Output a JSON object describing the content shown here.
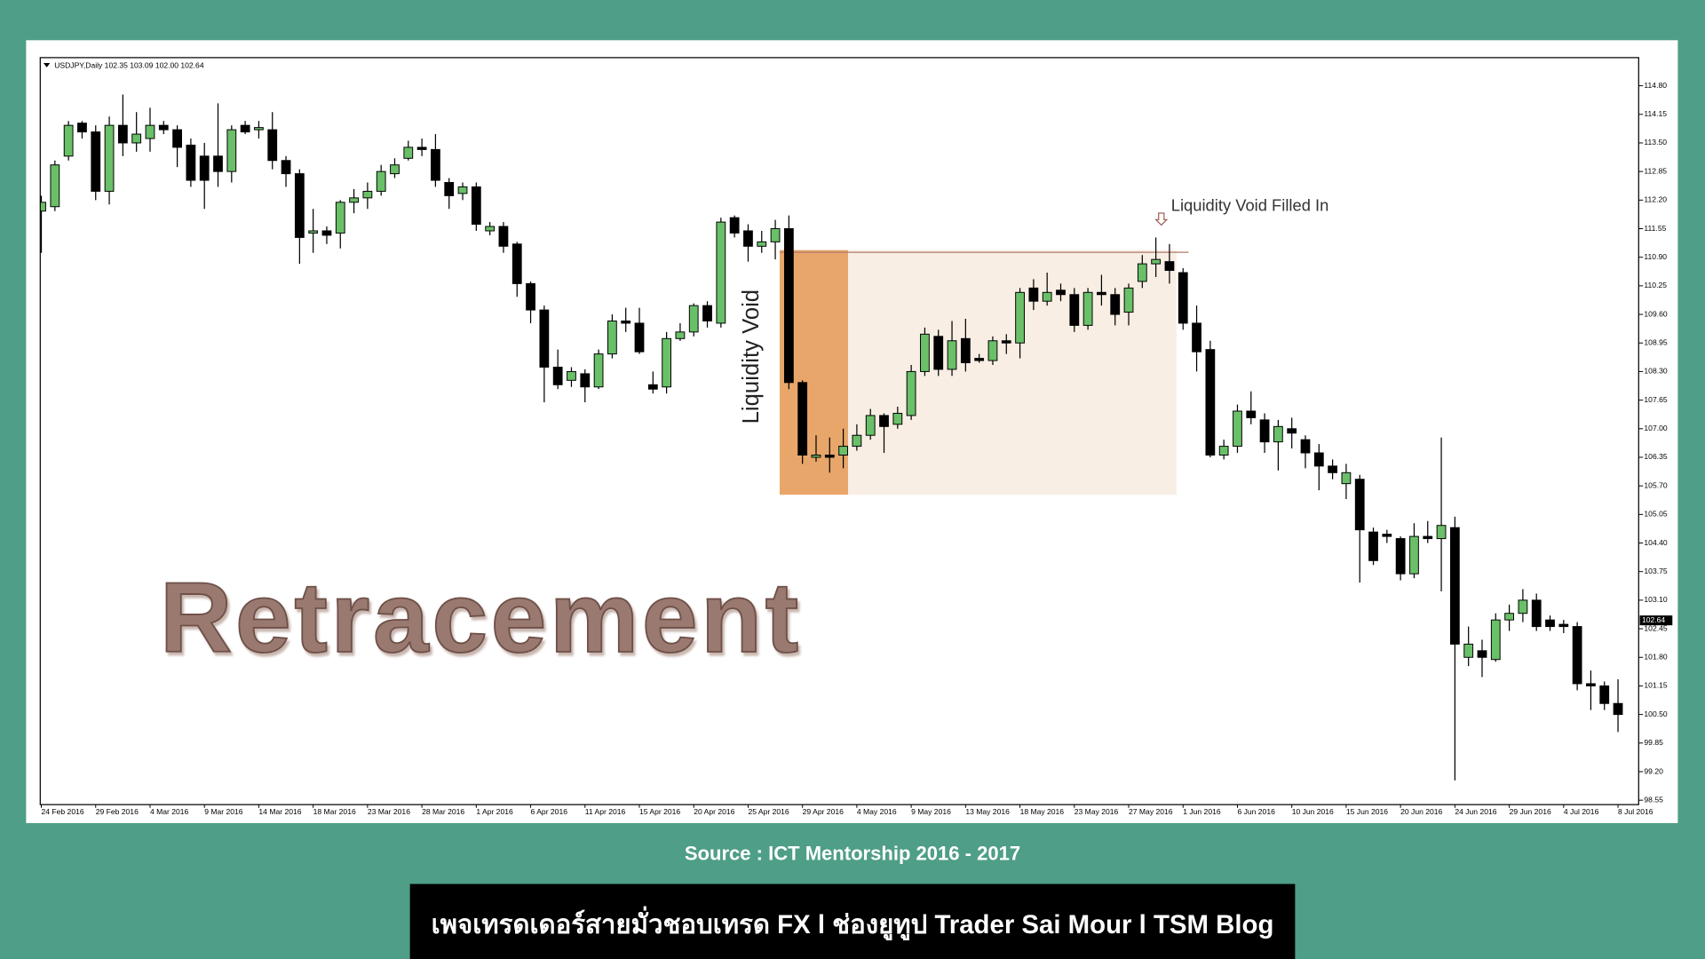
{
  "chart_data": {
    "type": "candlestick",
    "title": "USDJPY,Daily 102.35 103.09 102.00 102.64",
    "annotations": [
      "Liquidity Void",
      "Liquidity Void Filled In",
      "Retracement"
    ],
    "current_price": 102.64,
    "up_color": "#6abf69",
    "down_color": "#000000",
    "categories": [
      "24 Feb 2016",
      null,
      null,
      null,
      "29 Feb 2016",
      null,
      null,
      null,
      "4 Mar 2016",
      null,
      null,
      null,
      "9 Mar 2016",
      null,
      null,
      null,
      "14 Mar 2016",
      null,
      null,
      null,
      "18 Mar 2016",
      null,
      null,
      null,
      "23 Mar 2016",
      null,
      null,
      null,
      "28 Mar 2016",
      null,
      null,
      null,
      "1 Apr 2016",
      null,
      null,
      null,
      "6 Apr 2016",
      null,
      null,
      null,
      "11 Apr 2016",
      null,
      null,
      null,
      "15 Apr 2016",
      null,
      null,
      null,
      "20 Apr 2016",
      null,
      null,
      null,
      "25 Apr 2016",
      null,
      null,
      null,
      "29 Apr 2016",
      null,
      null,
      null,
      "4 May 2016",
      null,
      null,
      null,
      "9 May 2016",
      null,
      null,
      null,
      "13 May 2016",
      null,
      null,
      null,
      "18 May 2016",
      null,
      null,
      null,
      "23 May 2016",
      null,
      null,
      null,
      "27 May 2016",
      null,
      null,
      null,
      "1 Jun 2016",
      null,
      null,
      null,
      "6 Jun 2016",
      null,
      null,
      null,
      "10 Jun 2016",
      null,
      null,
      null,
      "15 Jun 2016",
      null,
      null,
      null,
      "20 Jun 2016",
      null,
      null,
      null,
      "24 Jun 2016",
      null,
      null,
      null,
      "29 Jun 2016",
      null,
      null,
      null,
      "4 Jul 2016",
      null,
      null,
      null,
      "8 Jul 2016"
    ],
    "open": [
      111.95,
      112.05,
      113.2,
      113.95,
      113.75,
      112.4,
      113.9,
      113.5,
      113.6,
      113.9,
      113.8,
      113.45,
      113.2,
      113.2,
      112.85,
      113.9,
      113.8,
      113.8,
      113.1,
      112.8,
      111.45,
      111.5,
      111.45,
      112.15,
      112.25,
      112.4,
      112.8,
      113.15,
      113.4,
      113.35,
      112.6,
      112.35,
      112.5,
      111.5,
      111.6,
      111.2,
      110.3,
      109.7,
      108.4,
      108.1,
      108.25,
      107.95,
      108.7,
      109.45,
      109.4,
      108.0,
      107.95,
      109.05,
      109.2,
      109.8,
      109.4,
      111.8,
      111.5,
      111.15,
      111.25,
      111.55,
      108.05,
      106.35,
      106.4,
      106.4,
      106.6,
      106.85,
      107.3,
      107.1,
      107.3,
      108.3,
      109.1,
      108.35,
      109.05,
      108.6,
      108.55,
      109.0,
      108.95,
      110.2,
      109.9,
      110.15,
      110.05,
      109.35,
      110.1,
      110.05,
      109.65,
      110.35,
      110.75,
      110.8,
      110.55,
      109.4,
      108.8,
      106.4,
      106.6,
      107.4,
      107.2,
      106.7,
      107.0,
      106.75,
      106.45,
      106.15,
      105.75,
      105.85,
      104.65,
      104.6,
      104.5,
      103.7,
      104.55,
      104.5,
      104.75,
      101.8,
      101.95,
      101.75,
      102.65,
      102.8,
      103.1,
      102.65,
      102.55,
      102.5,
      101.2,
      101.15,
      100.75
    ],
    "high": [
      112.3,
      113.1,
      114.0,
      114.0,
      113.9,
      114.1,
      114.6,
      114.2,
      114.3,
      114.0,
      113.9,
      113.6,
      113.5,
      114.4,
      113.9,
      114.0,
      114.0,
      114.2,
      113.2,
      112.9,
      112.0,
      111.6,
      112.2,
      112.45,
      112.6,
      113.0,
      113.15,
      113.55,
      113.6,
      113.7,
      112.7,
      112.6,
      112.6,
      111.7,
      111.7,
      111.25,
      110.35,
      109.8,
      108.8,
      108.4,
      108.35,
      108.8,
      109.6,
      109.75,
      109.75,
      108.3,
      109.2,
      109.4,
      109.85,
      109.9,
      111.8,
      111.85,
      111.65,
      111.5,
      111.75,
      111.85,
      108.1,
      106.85,
      106.8,
      107.0,
      107.1,
      107.45,
      107.35,
      107.5,
      108.45,
      109.3,
      109.25,
      109.45,
      109.5,
      108.7,
      109.1,
      109.15,
      110.2,
      110.4,
      110.55,
      110.3,
      110.2,
      110.2,
      110.5,
      110.2,
      110.3,
      110.95,
      111.35,
      111.2,
      110.65,
      109.8,
      109.0,
      106.75,
      107.55,
      107.85,
      107.35,
      107.2,
      107.25,
      106.85,
      106.65,
      106.3,
      106.2,
      105.95,
      104.75,
      104.7,
      104.55,
      104.85,
      104.9,
      106.8,
      105.0,
      102.5,
      102.2,
      102.8,
      103.0,
      103.35,
      103.25,
      102.75,
      102.65,
      102.6,
      101.5,
      101.25,
      101.3
    ],
    "low": [
      111.0,
      111.95,
      113.1,
      113.6,
      112.2,
      112.1,
      113.2,
      113.3,
      113.3,
      113.7,
      112.95,
      112.5,
      112.0,
      112.5,
      112.6,
      113.7,
      113.6,
      112.9,
      112.5,
      110.75,
      111.0,
      111.2,
      111.1,
      111.9,
      112.0,
      112.3,
      112.7,
      113.1,
      113.2,
      112.5,
      112.0,
      112.2,
      111.5,
      111.4,
      111.0,
      110.0,
      109.4,
      107.6,
      107.9,
      107.95,
      107.6,
      107.9,
      108.6,
      109.2,
      108.7,
      107.8,
      107.8,
      109.0,
      109.1,
      109.3,
      109.3,
      111.35,
      110.8,
      111.0,
      110.85,
      107.9,
      106.2,
      106.25,
      106.0,
      106.1,
      106.5,
      106.75,
      106.45,
      107.0,
      107.2,
      108.2,
      108.2,
      108.2,
      108.3,
      108.5,
      108.45,
      108.7,
      108.6,
      109.7,
      109.8,
      109.9,
      109.2,
      109.25,
      109.8,
      109.35,
      109.35,
      110.2,
      110.45,
      110.3,
      109.25,
      108.3,
      106.35,
      106.3,
      106.45,
      107.1,
      106.45,
      106.05,
      106.55,
      106.1,
      105.6,
      105.85,
      105.4,
      103.5,
      103.9,
      104.4,
      103.55,
      103.6,
      104.4,
      103.3,
      99.0,
      101.6,
      101.35,
      101.7,
      102.4,
      102.6,
      102.4,
      102.4,
      102.35,
      101.05,
      100.6,
      100.6,
      100.1
    ],
    "close": [
      112.15,
      113.0,
      113.9,
      113.75,
      112.4,
      113.9,
      113.5,
      113.7,
      113.9,
      113.8,
      113.4,
      112.65,
      112.65,
      112.85,
      113.8,
      113.75,
      113.85,
      113.1,
      112.8,
      111.35,
      111.5,
      111.4,
      112.15,
      112.25,
      112.4,
      112.85,
      113.0,
      113.4,
      113.35,
      112.65,
      112.3,
      112.5,
      111.65,
      111.6,
      111.15,
      110.3,
      109.7,
      108.4,
      108.0,
      108.3,
      107.95,
      108.7,
      109.45,
      109.4,
      108.75,
      107.9,
      109.05,
      109.2,
      109.8,
      109.45,
      111.7,
      111.45,
      111.15,
      111.25,
      111.55,
      108.05,
      106.4,
      106.4,
      106.35,
      106.6,
      106.85,
      107.3,
      107.05,
      107.35,
      108.3,
      109.15,
      108.35,
      109.0,
      108.5,
      108.55,
      109.0,
      108.95,
      110.1,
      109.9,
      110.1,
      110.05,
      109.35,
      110.1,
      110.05,
      109.6,
      110.2,
      110.75,
      110.85,
      110.6,
      109.4,
      108.75,
      106.4,
      106.6,
      107.4,
      107.25,
      106.7,
      107.05,
      106.9,
      106.45,
      106.15,
      106.0,
      106.0,
      104.7,
      104.0,
      104.55,
      103.7,
      104.55,
      104.5,
      104.8,
      102.1,
      102.1,
      101.8,
      102.65,
      102.8,
      103.1,
      102.5,
      102.5,
      102.5,
      101.2,
      101.15,
      100.75,
      100.5
    ],
    "ylim": [
      98.45,
      115.44
    ],
    "yticks": [
      {
        "value": 114.8,
        "label": "114.80"
      },
      114.15,
      {
        "value": 113.5,
        "label": "113.50"
      },
      112.85,
      {
        "value": 112.2,
        "label": "112.20"
      },
      111.55,
      {
        "value": 110.9,
        "label": "110.90"
      },
      110.25,
      {
        "value": 109.6,
        "label": "109.60"
      },
      108.95,
      {
        "value": 108.3,
        "label": "108.30"
      },
      107.65,
      {
        "value": 107,
        "label": "107.00"
      },
      106.35,
      {
        "value": 105.7,
        "label": "105.70"
      },
      105.05,
      {
        "value": 104.4,
        "label": "104.40"
      },
      103.75,
      {
        "value": 103.1,
        "label": "103.10"
      },
      102.45,
      {
        "value": 101.8,
        "label": "101.80"
      },
      101.15,
      {
        "value": 100.5,
        "label": "100.50"
      },
      99.85,
      {
        "value": 99.2,
        "label": "99.20"
      },
      98.55
    ],
    "grid": false
  },
  "source": "Source : ICT Mentorship 2016 - 2017",
  "banner": "เพจเทรดเดอร์สายมั่วชอบเทรด FX l ช่องยูทูป Trader Sai Mour l TSM Blog"
}
